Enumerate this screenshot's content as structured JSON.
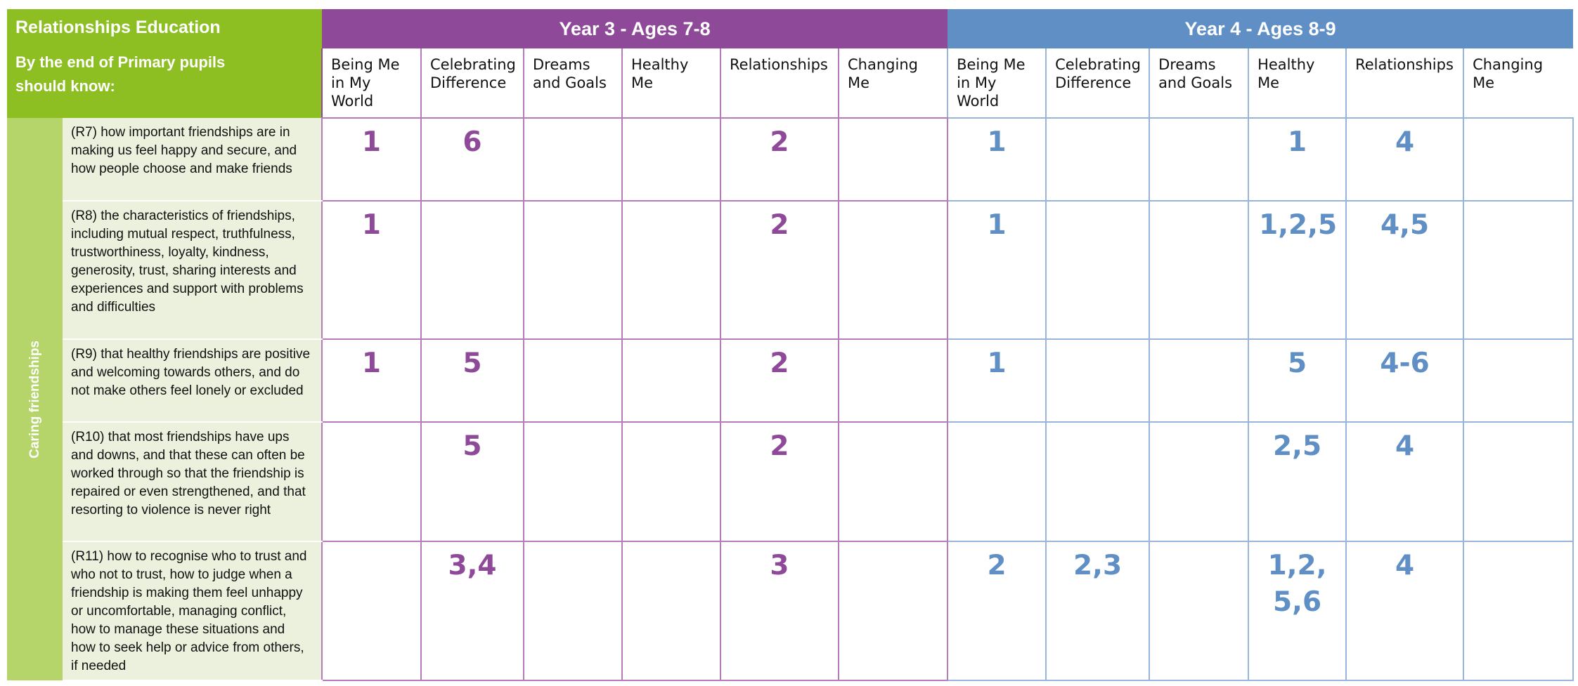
{
  "header": {
    "title": "Relationships Education",
    "subtitle": "By the end of Primary pupils should know:"
  },
  "groups": [
    {
      "title": "Year 3 - Ages 7-8",
      "color": "#8e4a98",
      "line": "#b67bbb",
      "columns": [
        "Being Me in My World",
        "Celebrating Difference",
        "Dreams and Goals",
        "Healthy Me",
        "Relationships",
        "Changing Me"
      ]
    },
    {
      "title": "Year 4 - Ages 8-9",
      "color": "#5f8fc4",
      "line": "#97b5da",
      "columns": [
        "Being Me in My World",
        "Celebrating Difference",
        "Dreams and Goals",
        "Healthy Me",
        "Relationships",
        "Changing Me"
      ]
    }
  ],
  "section": "Caring friendships",
  "rows": [
    {
      "description": "(R7) how important friendships are in making us feel happy and secure, and how people choose and make friends",
      "cells": [
        [
          "1",
          "6",
          null,
          null,
          "2",
          null
        ],
        [
          "1",
          null,
          null,
          "1",
          "4",
          null
        ]
      ]
    },
    {
      "description": "(R8) the characteristics of friendships, including mutual respect, truthfulness, trustworthiness, loyalty, kindness, generosity, trust, sharing interests and experiences and support with problems and difficulties",
      "cells": [
        [
          "1",
          null,
          null,
          null,
          "2",
          null
        ],
        [
          "1",
          null,
          null,
          "1,2,5",
          "4,5",
          null
        ]
      ]
    },
    {
      "description": "(R9) that healthy friendships are positive and welcoming towards others, and do not make others feel lonely or excluded",
      "cells": [
        [
          "1",
          "5",
          null,
          null,
          "2",
          null
        ],
        [
          "1",
          null,
          null,
          "5",
          "4-6",
          null
        ]
      ]
    },
    {
      "description": "(R10) that most friendships have ups and downs, and that these can often be worked through so that the friendship is repaired or even strengthened, and that resorting to violence is never right",
      "cells": [
        [
          null,
          "5",
          null,
          null,
          "2",
          null
        ],
        [
          null,
          null,
          null,
          "2,5",
          "4",
          null
        ]
      ]
    },
    {
      "description": "(R11) how to recognise who to trust and who not to trust, how to judge when a friendship is making them feel unhappy or uncomfortable, managing conflict, how to manage these situations and how to seek help or advice from others, if needed",
      "cells": [
        [
          null,
          "3,4",
          null,
          null,
          "3",
          null
        ],
        [
          "2",
          "2,3",
          null,
          "1,2, 5,6",
          "4",
          null
        ]
      ]
    }
  ]
}
